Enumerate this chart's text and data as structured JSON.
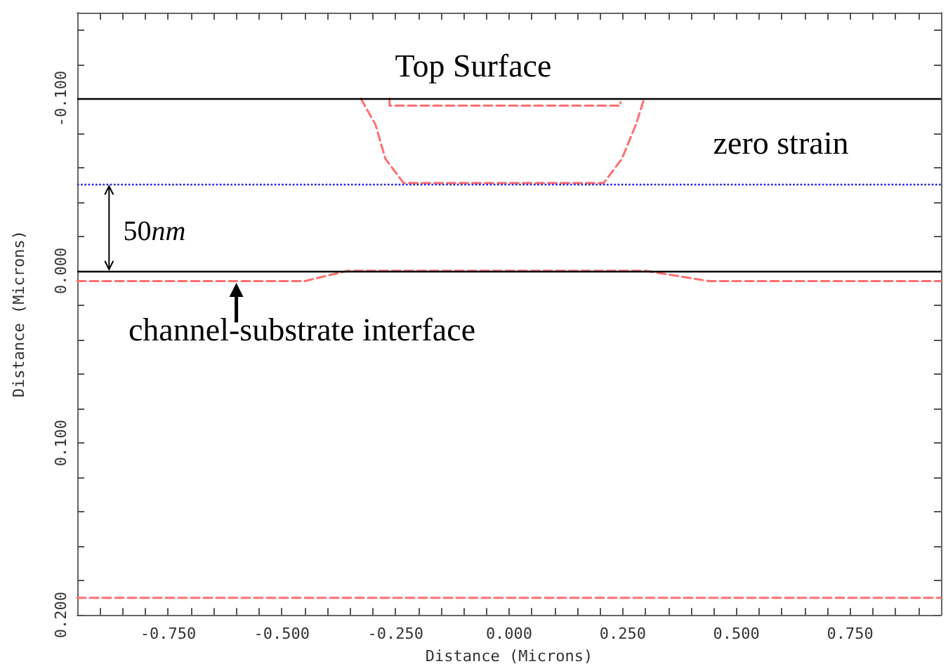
{
  "chart_data": {
    "type": "line",
    "xlabel": "Distance (Microns)",
    "ylabel": "Distance (Microns)",
    "xlim": [
      -0.95,
      0.95
    ],
    "ylim": [
      0.2,
      -0.15
    ],
    "xticks": [
      {
        "value": -0.9,
        "label": null
      },
      {
        "value": -0.85,
        "label": null
      },
      {
        "value": -0.8,
        "label": null
      },
      {
        "value": -0.75,
        "label": "-0.750"
      },
      {
        "value": -0.7,
        "label": null
      },
      {
        "value": -0.65,
        "label": null
      },
      {
        "value": -0.6,
        "label": null
      },
      {
        "value": -0.55,
        "label": null
      },
      {
        "value": -0.5,
        "label": "-0.500"
      },
      {
        "value": -0.45,
        "label": null
      },
      {
        "value": -0.4,
        "label": null
      },
      {
        "value": -0.35,
        "label": null
      },
      {
        "value": -0.3,
        "label": null
      },
      {
        "value": -0.25,
        "label": "-0.250"
      },
      {
        "value": -0.2,
        "label": null
      },
      {
        "value": -0.15,
        "label": null
      },
      {
        "value": -0.1,
        "label": null
      },
      {
        "value": -0.05,
        "label": null
      },
      {
        "value": 0,
        "label": "0.000"
      },
      {
        "value": 0.05,
        "label": null
      },
      {
        "value": 0.1,
        "label": null
      },
      {
        "value": 0.15,
        "label": null
      },
      {
        "value": 0.2,
        "label": null
      },
      {
        "value": 0.25,
        "label": "0.250"
      },
      {
        "value": 0.3,
        "label": null
      },
      {
        "value": 0.35,
        "label": null
      },
      {
        "value": 0.4,
        "label": null
      },
      {
        "value": 0.45,
        "label": null
      },
      {
        "value": 0.5,
        "label": "0.500"
      },
      {
        "value": 0.55,
        "label": null
      },
      {
        "value": 0.6,
        "label": null
      },
      {
        "value": 0.65,
        "label": null
      },
      {
        "value": 0.7,
        "label": null
      },
      {
        "value": 0.75,
        "label": "0.750"
      },
      {
        "value": 0.8,
        "label": null
      },
      {
        "value": 0.85,
        "label": null
      },
      {
        "value": 0.9,
        "label": null
      }
    ],
    "yticks": [
      {
        "value": -0.14,
        "label": null
      },
      {
        "value": -0.12,
        "label": null
      },
      {
        "value": -0.1,
        "label": "-0.100"
      },
      {
        "value": -0.08,
        "label": null
      },
      {
        "value": -0.06,
        "label": null
      },
      {
        "value": -0.04,
        "label": null
      },
      {
        "value": -0.02,
        "label": null
      },
      {
        "value": 0,
        "label": "0.000"
      },
      {
        "value": 0.02,
        "label": null
      },
      {
        "value": 0.04,
        "label": null
      },
      {
        "value": 0.06,
        "label": null
      },
      {
        "value": 0.08,
        "label": null
      },
      {
        "value": 0.1,
        "label": "0.100"
      },
      {
        "value": 0.12,
        "label": null
      },
      {
        "value": 0.14,
        "label": null
      },
      {
        "value": 0.16,
        "label": null
      },
      {
        "value": 0.18,
        "label": null
      },
      {
        "value": 0.2,
        "label": "0.200"
      }
    ],
    "grid": false,
    "marker": "none",
    "line_style": "dashed",
    "series": [
      {
        "color": "#ff6f6f",
        "x": [
          -0.95,
          -0.45,
          -0.355,
          0.3,
          0.44,
          0.95
        ],
        "values": [
          0.006,
          0.006,
          0,
          0,
          0.006,
          0.006
        ]
      },
      {
        "color": "#ff6f6f",
        "x": [
          -0.326,
          -0.294,
          -0.272,
          -0.232,
          0.208,
          0.248,
          0.279,
          0.297
        ],
        "values": [
          -0.1,
          -0.085,
          -0.065,
          -0.051,
          -0.051,
          -0.065,
          -0.085,
          -0.1
        ]
      },
      {
        "color": "#ff6f6f",
        "x": [
          -0.263,
          -0.263,
          0.245,
          0.245
        ],
        "values": [
          -0.1,
          -0.096,
          -0.096,
          -0.098
        ]
      },
      {
        "color": "#ff6f6f",
        "x": [
          -0.95,
          0.95
        ],
        "values": [
          0.19,
          0.19
        ]
      }
    ],
    "ref_lines": [
      {
        "axis": "y",
        "value": -0.1,
        "color": "#000000",
        "line_style": "solid"
      },
      {
        "axis": "y",
        "value": -0.05,
        "color": "#2222ee",
        "line_style": "dotted"
      },
      {
        "axis": "y",
        "value": 0,
        "color": "#000000",
        "line_style": "solid"
      }
    ],
    "annotations": [
      "Top Surface",
      "zero strain",
      "50nm",
      "channel-substrate interface"
    ]
  }
}
